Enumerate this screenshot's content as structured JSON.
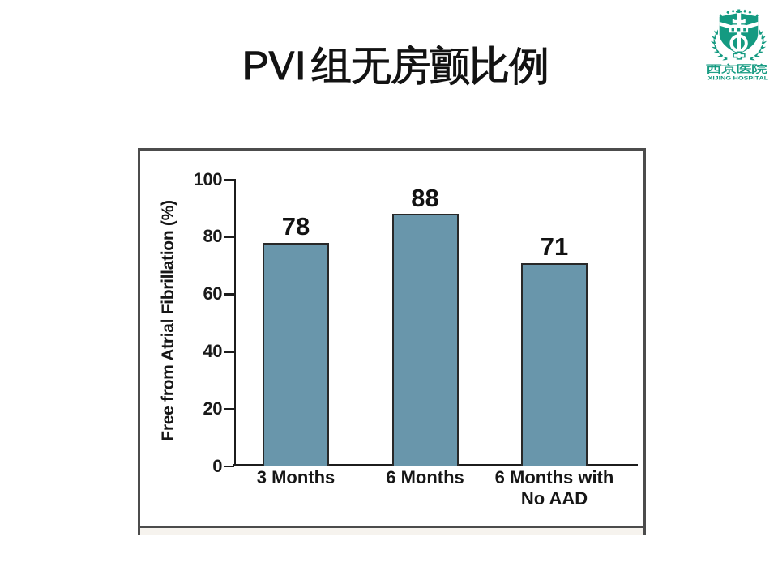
{
  "slide": {
    "title": "PVI组无房颤比例",
    "background_color": "#ffffff"
  },
  "logo": {
    "chinese_name": "西京医院",
    "english_name": "XIJING HOSPITAL",
    "color": "#149a81"
  },
  "chart_data": {
    "type": "bar",
    "categories": [
      "3 Months",
      "6 Months",
      "6 Months with\nNo AAD"
    ],
    "values": [
      78,
      88,
      71
    ],
    "bar_labels": [
      "78",
      "88",
      "71"
    ],
    "title": "",
    "xlabel": "",
    "ylabel": "Free from Atrial Fibrillation (%)",
    "ylim": [
      0,
      100
    ],
    "yticks": [
      0,
      20,
      40,
      60,
      80,
      100
    ],
    "grid": false,
    "legend_position": "none",
    "bar_color": "#6996ab",
    "bar_border_color": "#282828",
    "axis_color": "#1c1c1c"
  }
}
